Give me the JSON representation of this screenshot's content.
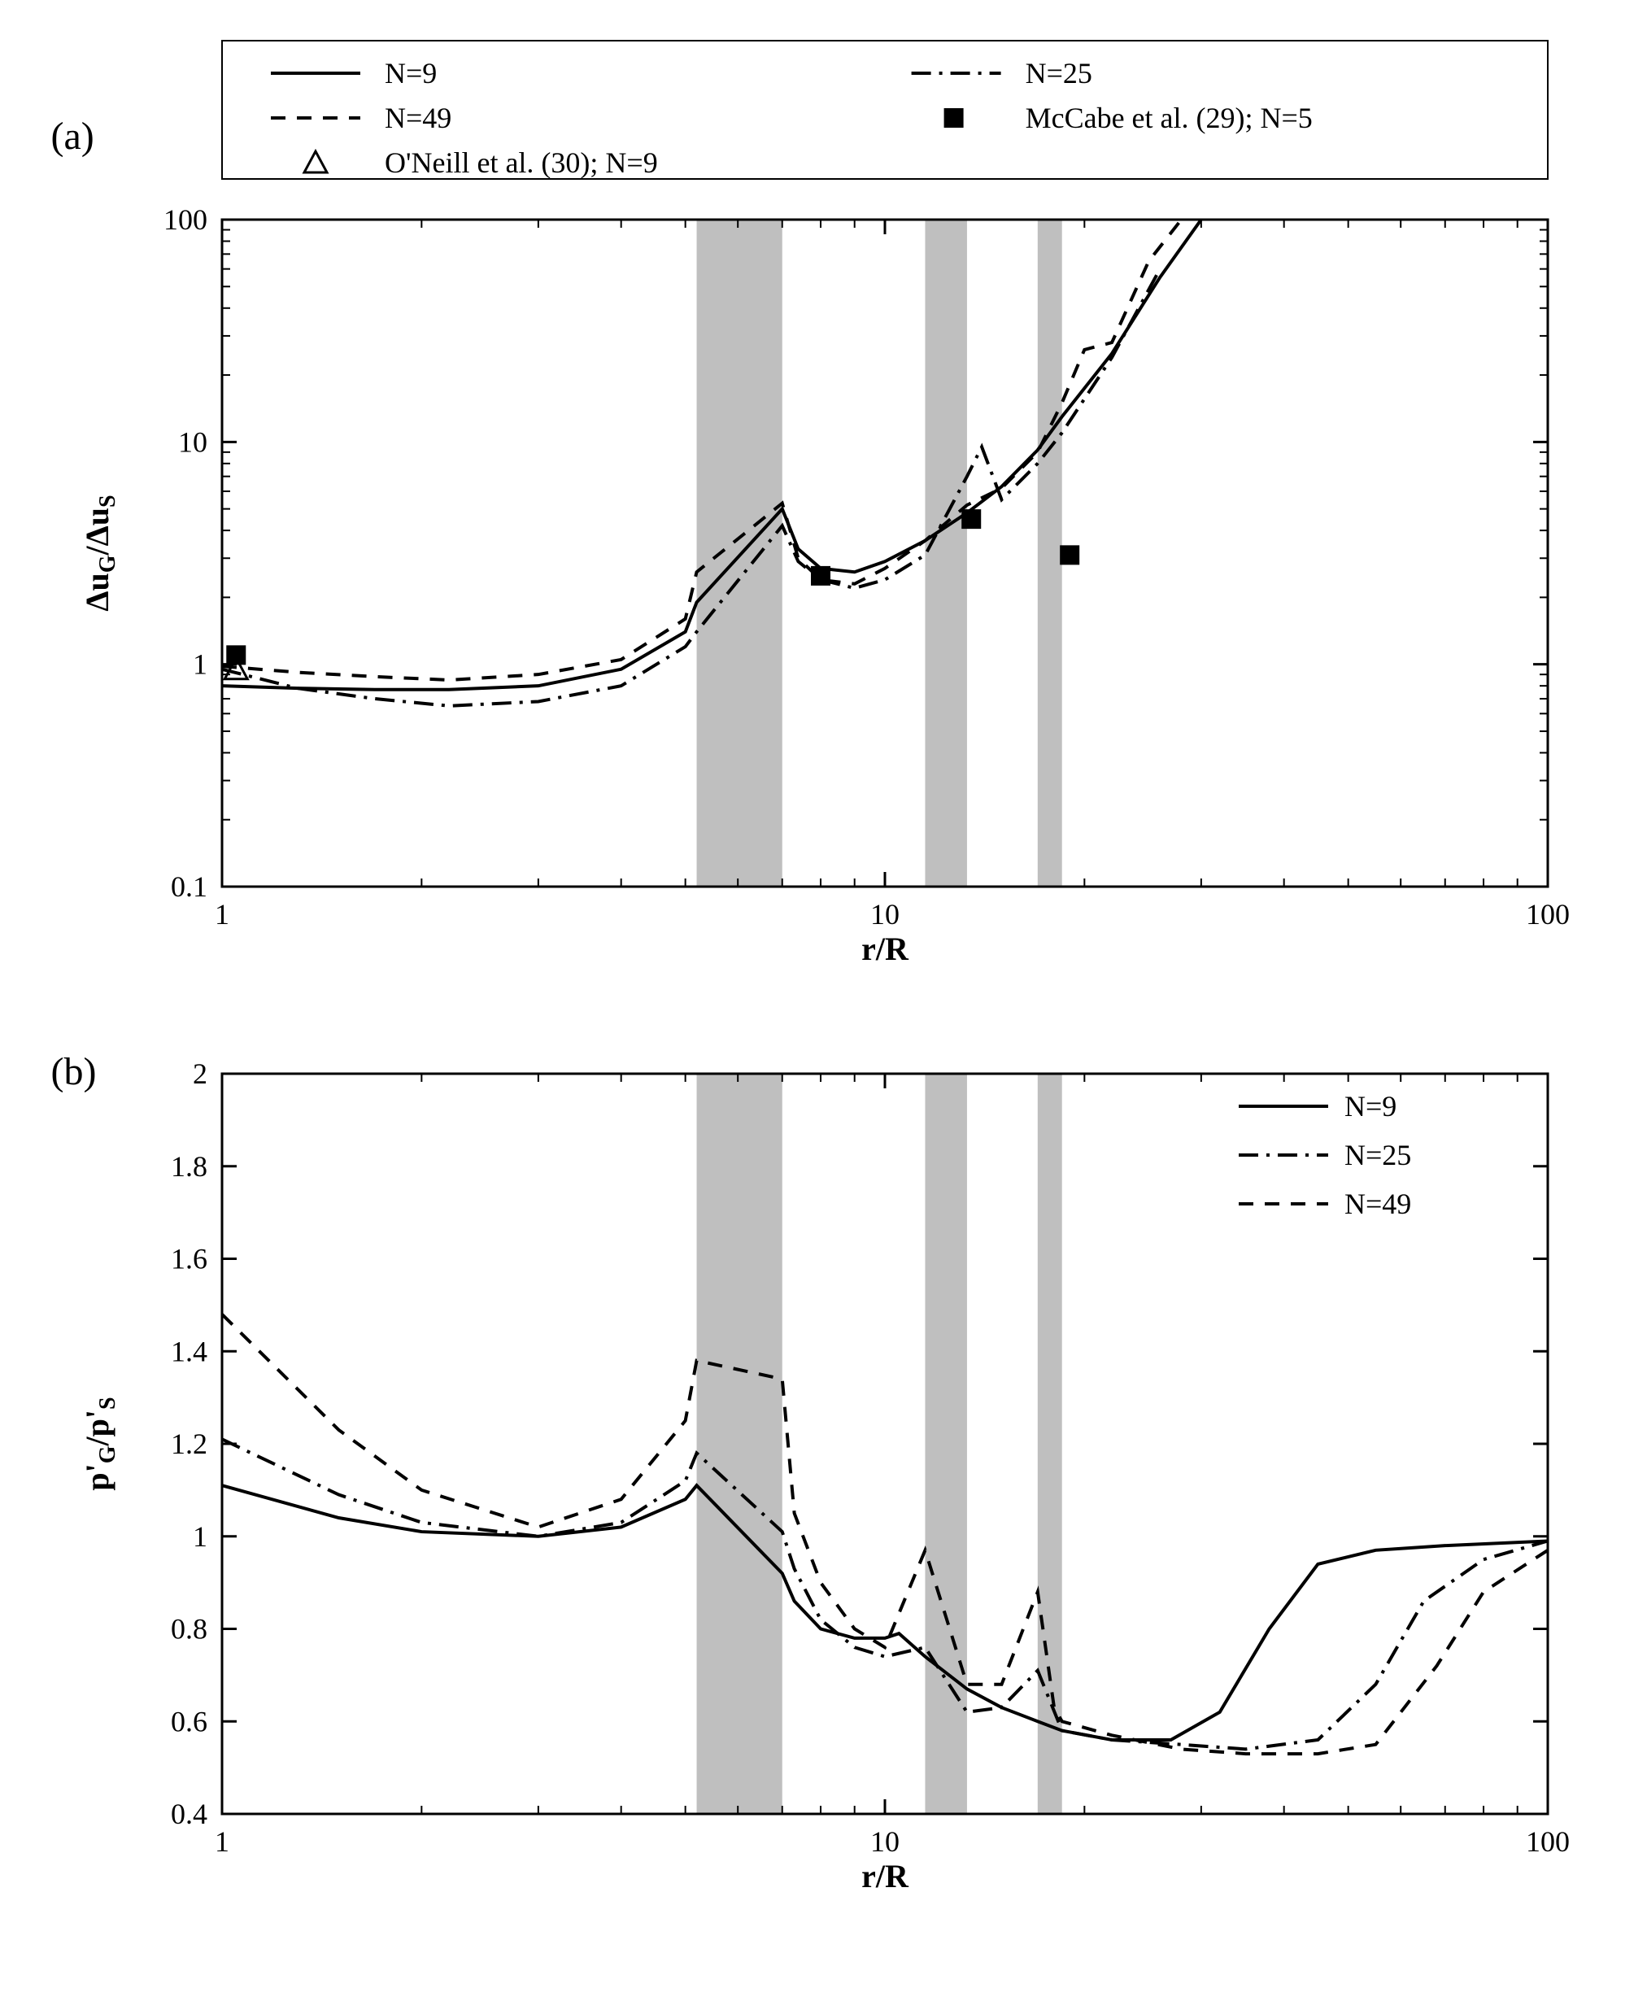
{
  "figure": {
    "panel_a_label": "(a)",
    "panel_b_label": "(b)",
    "font_family": "Times New Roman",
    "axis_color": "#000000",
    "background_color": "#ffffff",
    "band_color": "#bfbfbf",
    "line_color": "#000000",
    "marker_color": "#000000",
    "axis_font_size": 36,
    "label_font_size": 40,
    "legend_font_size": 36
  },
  "panel_a": {
    "type": "line-log-log",
    "xlabel": "r/R",
    "ylabel": "ΔuG/ΔuS",
    "ylabel_html": "Δu<sub>G</sub>/Δu<sub>S</sub>",
    "xlim": [
      1,
      100
    ],
    "ylim": [
      0.1,
      100
    ],
    "xticks": [
      1,
      10,
      100
    ],
    "yticks": [
      0.1,
      1,
      10,
      100
    ],
    "shaded_bands_x": [
      [
        5.2,
        7.0
      ],
      [
        11.5,
        13.3
      ],
      [
        17.0,
        18.5
      ]
    ],
    "legend_items": [
      {
        "label": "N=9",
        "style": "solid"
      },
      {
        "label": "N=25",
        "style": "dashdot"
      },
      {
        "label": "N=49",
        "style": "dashed"
      },
      {
        "label": "McCabe et al. (29); N=5",
        "style": "square"
      },
      {
        "label": "O'Neill et al. (30); N=9",
        "style": "triangle"
      }
    ],
    "series_N9": {
      "style": "solid",
      "x": [
        1,
        1.3,
        1.7,
        2.2,
        3,
        4,
        5,
        5.2,
        7,
        7.4,
        8,
        9,
        10,
        11.5,
        13.3,
        15,
        17,
        18.5,
        22,
        26,
        30
      ],
      "y": [
        0.8,
        0.78,
        0.77,
        0.77,
        0.8,
        0.95,
        1.4,
        1.9,
        5.0,
        3.3,
        2.7,
        2.6,
        2.9,
        3.6,
        4.8,
        6.3,
        9.2,
        13,
        25,
        55,
        100
      ]
    },
    "series_N25": {
      "style": "dashdot",
      "x": [
        1,
        1.3,
        1.7,
        2.2,
        3,
        4,
        5,
        5.2,
        7,
        7.4,
        8,
        9,
        10,
        11.5,
        13.3,
        14.0,
        15,
        17,
        18.5,
        22,
        26
      ],
      "y": [
        0.95,
        0.78,
        0.7,
        0.65,
        0.68,
        0.8,
        1.2,
        1.4,
        4.2,
        2.9,
        2.4,
        2.2,
        2.4,
        3.1,
        7.0,
        9.5,
        5.5,
        8.0,
        11,
        24,
        60
      ]
    },
    "series_N49": {
      "style": "dashed",
      "x": [
        1,
        1.3,
        1.7,
        2.2,
        3,
        4,
        5,
        5.2,
        7,
        7.4,
        8,
        9,
        10,
        11.5,
        13.3,
        15,
        17,
        18.5,
        20,
        22,
        25,
        28
      ],
      "y": [
        0.98,
        0.92,
        0.88,
        0.85,
        0.9,
        1.05,
        1.6,
        2.6,
        5.3,
        3.0,
        2.4,
        2.3,
        2.7,
        3.6,
        5.2,
        6.2,
        9.0,
        15,
        26,
        28,
        65,
        100
      ]
    },
    "mccabe_points": {
      "style": "square",
      "x": [
        1.05,
        8.0,
        13.5,
        19.0
      ],
      "y": [
        1.1,
        2.5,
        4.5,
        3.1
      ]
    },
    "oneill_points": {
      "style": "triangle",
      "x": [
        1.05
      ],
      "y": [
        0.95
      ]
    }
  },
  "panel_b": {
    "type": "line-log-linear",
    "xlabel": "r/R",
    "ylabel": "p'G/p'S",
    "xlim": [
      1,
      100
    ],
    "ylim": [
      0.4,
      2.0
    ],
    "xticks": [
      1,
      10,
      100
    ],
    "yticks": [
      0.4,
      0.6,
      0.8,
      1.0,
      1.2,
      1.4,
      1.6,
      1.8,
      2.0
    ],
    "shaded_bands_x": [
      [
        5.2,
        7.0
      ],
      [
        11.5,
        13.3
      ],
      [
        17.0,
        18.5
      ]
    ],
    "legend_items": [
      {
        "label": "N=9",
        "style": "solid"
      },
      {
        "label": "N=25",
        "style": "dashdot"
      },
      {
        "label": "N=49",
        "style": "dashed"
      }
    ],
    "series_N9": {
      "style": "solid",
      "x": [
        1,
        1.5,
        2,
        3,
        4,
        5,
        5.2,
        7,
        7.3,
        8,
        9,
        10,
        10.5,
        11.5,
        13.3,
        15,
        17,
        18.5,
        22,
        27,
        32,
        38,
        45,
        55,
        70,
        100
      ],
      "y": [
        1.11,
        1.04,
        1.01,
        1.0,
        1.02,
        1.08,
        1.11,
        0.92,
        0.86,
        0.8,
        0.78,
        0.78,
        0.79,
        0.74,
        0.67,
        0.63,
        0.6,
        0.58,
        0.56,
        0.56,
        0.62,
        0.8,
        0.94,
        0.97,
        0.98,
        0.99
      ]
    },
    "series_N25": {
      "style": "dashdot",
      "x": [
        1,
        1.5,
        2,
        3,
        4,
        5,
        5.2,
        7,
        7.3,
        8,
        9,
        10,
        11.5,
        13.3,
        15,
        17,
        18.5,
        22,
        28,
        35,
        45,
        55,
        65,
        80,
        100
      ],
      "y": [
        1.21,
        1.09,
        1.03,
        1.0,
        1.03,
        1.12,
        1.18,
        1.01,
        0.93,
        0.82,
        0.76,
        0.74,
        0.76,
        0.62,
        0.63,
        0.71,
        0.58,
        0.56,
        0.55,
        0.54,
        0.56,
        0.68,
        0.86,
        0.95,
        0.99
      ]
    },
    "series_N49": {
      "style": "dashed",
      "x": [
        1,
        1.5,
        2,
        3,
        4,
        5,
        5.2,
        7,
        7.3,
        8,
        9,
        10,
        11.5,
        13.3,
        15,
        17,
        18,
        18.5,
        22,
        28,
        35,
        45,
        55,
        68,
        80,
        100
      ],
      "y": [
        1.48,
        1.23,
        1.1,
        1.02,
        1.08,
        1.25,
        1.38,
        1.34,
        1.05,
        0.9,
        0.8,
        0.76,
        0.97,
        0.68,
        0.68,
        0.88,
        0.63,
        0.6,
        0.57,
        0.54,
        0.53,
        0.53,
        0.55,
        0.72,
        0.88,
        0.97
      ]
    }
  }
}
